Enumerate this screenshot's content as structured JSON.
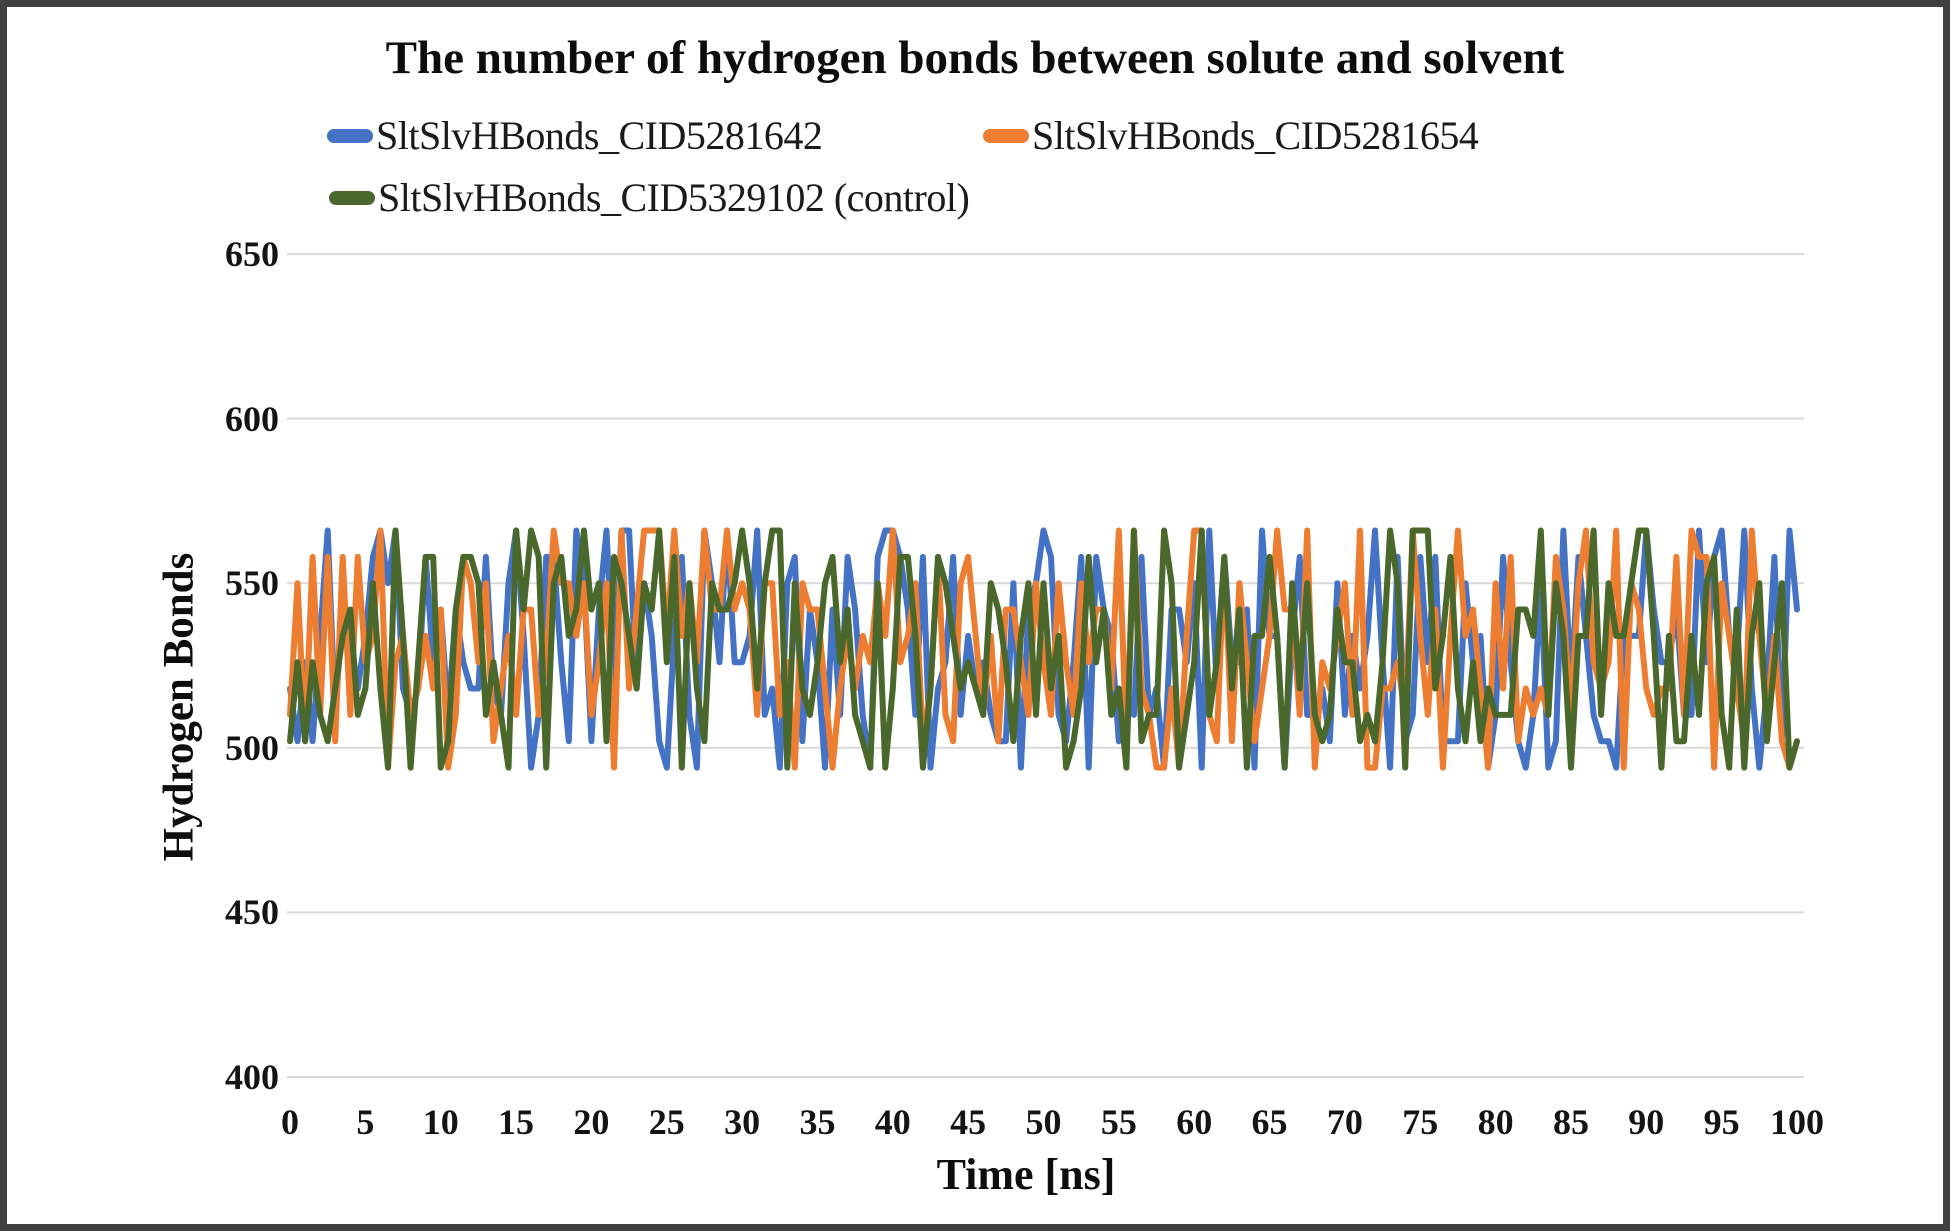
{
  "chart_data": {
    "type": "line",
    "title": "The number of hydrogen bonds between solute and solvent",
    "xlabel": "Time [ns]",
    "ylabel": "Hydrogen Bonds",
    "xlim": [
      0,
      100
    ],
    "ylim": [
      400,
      650
    ],
    "xticks": [
      0,
      5,
      10,
      15,
      20,
      25,
      30,
      35,
      40,
      45,
      50,
      55,
      60,
      65,
      70,
      75,
      80,
      85,
      90,
      95,
      100
    ],
    "yticks": [
      400,
      450,
      500,
      550,
      600,
      650
    ],
    "grid": "horizontal",
    "grid_color": "#D9D9D9",
    "legend_position": "top-left, two rows",
    "x_start": 0,
    "x_step": 0.5,
    "series": [
      {
        "name": "SltSlvHBonds_CID5281642",
        "color": "#4472C4",
        "values": [
          518,
          502,
          526,
          502,
          534,
          566,
          510,
          542,
          534,
          518,
          534,
          558,
          566,
          550,
          566,
          518,
          510,
          518,
          558,
          526,
          542,
          510,
          542,
          526,
          518,
          518,
          558,
          518,
          510,
          550,
          566,
          534,
          494,
          510,
          558,
          558,
          526,
          502,
          566,
          550,
          502,
          542,
          566,
          518,
          566,
          566,
          518,
          550,
          534,
          502,
          494,
          534,
          558,
          510,
          494,
          566,
          550,
          526,
          566,
          526,
          526,
          534,
          566,
          510,
          518,
          494,
          550,
          558,
          502,
          542,
          526,
          494,
          542,
          510,
          558,
          542,
          510,
          494,
          558,
          566,
          566,
          558,
          542,
          510,
          558,
          494,
          518,
          526,
          558,
          510,
          534,
          518,
          526,
          510,
          502,
          502,
          550,
          494,
          542,
          550,
          566,
          558,
          510,
          502,
          526,
          558,
          494,
          558,
          542,
          534,
          502,
          518,
          510,
          558,
          510,
          518,
          494,
          542,
          542,
          526,
          550,
          494,
          566,
          518,
          558,
          526,
          526,
          542,
          494,
          566,
          534,
          534,
          494,
          534,
          558,
          510,
          510,
          518,
          502,
          550,
          510,
          534,
          518,
          534,
          566,
          526,
          494,
          558,
          502,
          510,
          558,
          526,
          558,
          502,
          502,
          502,
          550,
          526,
          534,
          494,
          510,
          558,
          526,
          502,
          494,
          510,
          550,
          494,
          502,
          566,
          518,
          558,
          534,
          510,
          502,
          502,
          494,
          534,
          534,
          534,
          566,
          542,
          526,
          526,
          542,
          510,
          510,
          566,
          526,
          558,
          566,
          534,
          526,
          566,
          518,
          494,
          518,
          558,
          502,
          566,
          542
        ]
      },
      {
        "name": "SltSlvHBonds_CID5281654",
        "color": "#ED7D31",
        "values": [
          510,
          550,
          502,
          558,
          510,
          558,
          502,
          558,
          510,
          558,
          526,
          534,
          566,
          494,
          526,
          534,
          510,
          518,
          534,
          518,
          542,
          494,
          510,
          558,
          550,
          526,
          550,
          502,
          518,
          534,
          510,
          542,
          542,
          510,
          526,
          566,
          550,
          550,
          534,
          550,
          510,
          526,
          550,
          494,
          566,
          518,
          542,
          566,
          566,
          566,
          534,
          566,
          534,
          550,
          526,
          566,
          542,
          542,
          566,
          542,
          550,
          542,
          510,
          550,
          550,
          510,
          526,
          494,
          550,
          542,
          542,
          518,
          494,
          518,
          534,
          518,
          534,
          526,
          550,
          534,
          566,
          526,
          534,
          550,
          502,
          518,
          558,
          510,
          502,
          550,
          558,
          534,
          510,
          534,
          502,
          542,
          542,
          526,
          510,
          550,
          526,
          510,
          550,
          526,
          510,
          550,
          526,
          542,
          542,
          518,
          566,
          502,
          566,
          518,
          510,
          494,
          494,
          518,
          494,
          534,
          566,
          566,
          510,
          502,
          558,
          502,
          550,
          526,
          502,
          518,
          534,
          566,
          542,
          542,
          510,
          566,
          494,
          526,
          518,
          534,
          550,
          510,
          566,
          494,
          494,
          518,
          518,
          526,
          510,
          566,
          534,
          510,
          542,
          494,
          534,
          566,
          534,
          542,
          518,
          494,
          550,
          518,
          558,
          502,
          518,
          510,
          518,
          510,
          558,
          542,
          510,
          550,
          566,
          526,
          518,
          526,
          566,
          494,
          550,
          542,
          518,
          510,
          518,
          518,
          558,
          510,
          566,
          558,
          558,
          494,
          550,
          534,
          518,
          502,
          566,
          534,
          510,
          534,
          502,
          494,
          502
        ]
      },
      {
        "name": "SltSlvHBonds_CID5329102 (control)",
        "color": "#4A682C",
        "values": [
          502,
          526,
          502,
          526,
          510,
          502,
          518,
          534,
          542,
          510,
          518,
          550,
          518,
          494,
          566,
          534,
          494,
          526,
          558,
          558,
          494,
          502,
          542,
          558,
          558,
          550,
          510,
          526,
          510,
          494,
          566,
          542,
          566,
          558,
          494,
          550,
          558,
          534,
          542,
          566,
          542,
          550,
          502,
          558,
          550,
          534,
          518,
          550,
          542,
          566,
          526,
          558,
          494,
          550,
          518,
          502,
          550,
          542,
          542,
          550,
          566,
          550,
          518,
          550,
          566,
          566,
          494,
          550,
          518,
          510,
          526,
          550,
          558,
          526,
          542,
          510,
          502,
          494,
          550,
          494,
          518,
          558,
          558,
          534,
          494,
          518,
          558,
          550,
          534,
          518,
          526,
          518,
          510,
          550,
          542,
          526,
          502,
          534,
          550,
          510,
          550,
          518,
          534,
          494,
          502,
          518,
          558,
          526,
          542,
          510,
          518,
          494,
          566,
          502,
          510,
          510,
          566,
          550,
          494,
          510,
          526,
          566,
          510,
          526,
          558,
          518,
          542,
          494,
          534,
          534,
          558,
          534,
          494,
          550,
          518,
          550,
          510,
          502,
          510,
          542,
          526,
          526,
          502,
          510,
          502,
          526,
          566,
          550,
          494,
          566,
          566,
          566,
          518,
          534,
          558,
          518,
          502,
          526,
          502,
          518,
          510,
          510,
          510,
          542,
          542,
          534,
          566,
          510,
          550,
          534,
          494,
          534,
          534,
          566,
          510,
          550,
          534,
          534,
          550,
          566,
          566,
          534,
          494,
          534,
          502,
          502,
          534,
          510,
          550,
          558,
          510,
          494,
          542,
          494,
          534,
          550,
          502,
          526,
          550,
          494,
          502
        ]
      }
    ]
  }
}
